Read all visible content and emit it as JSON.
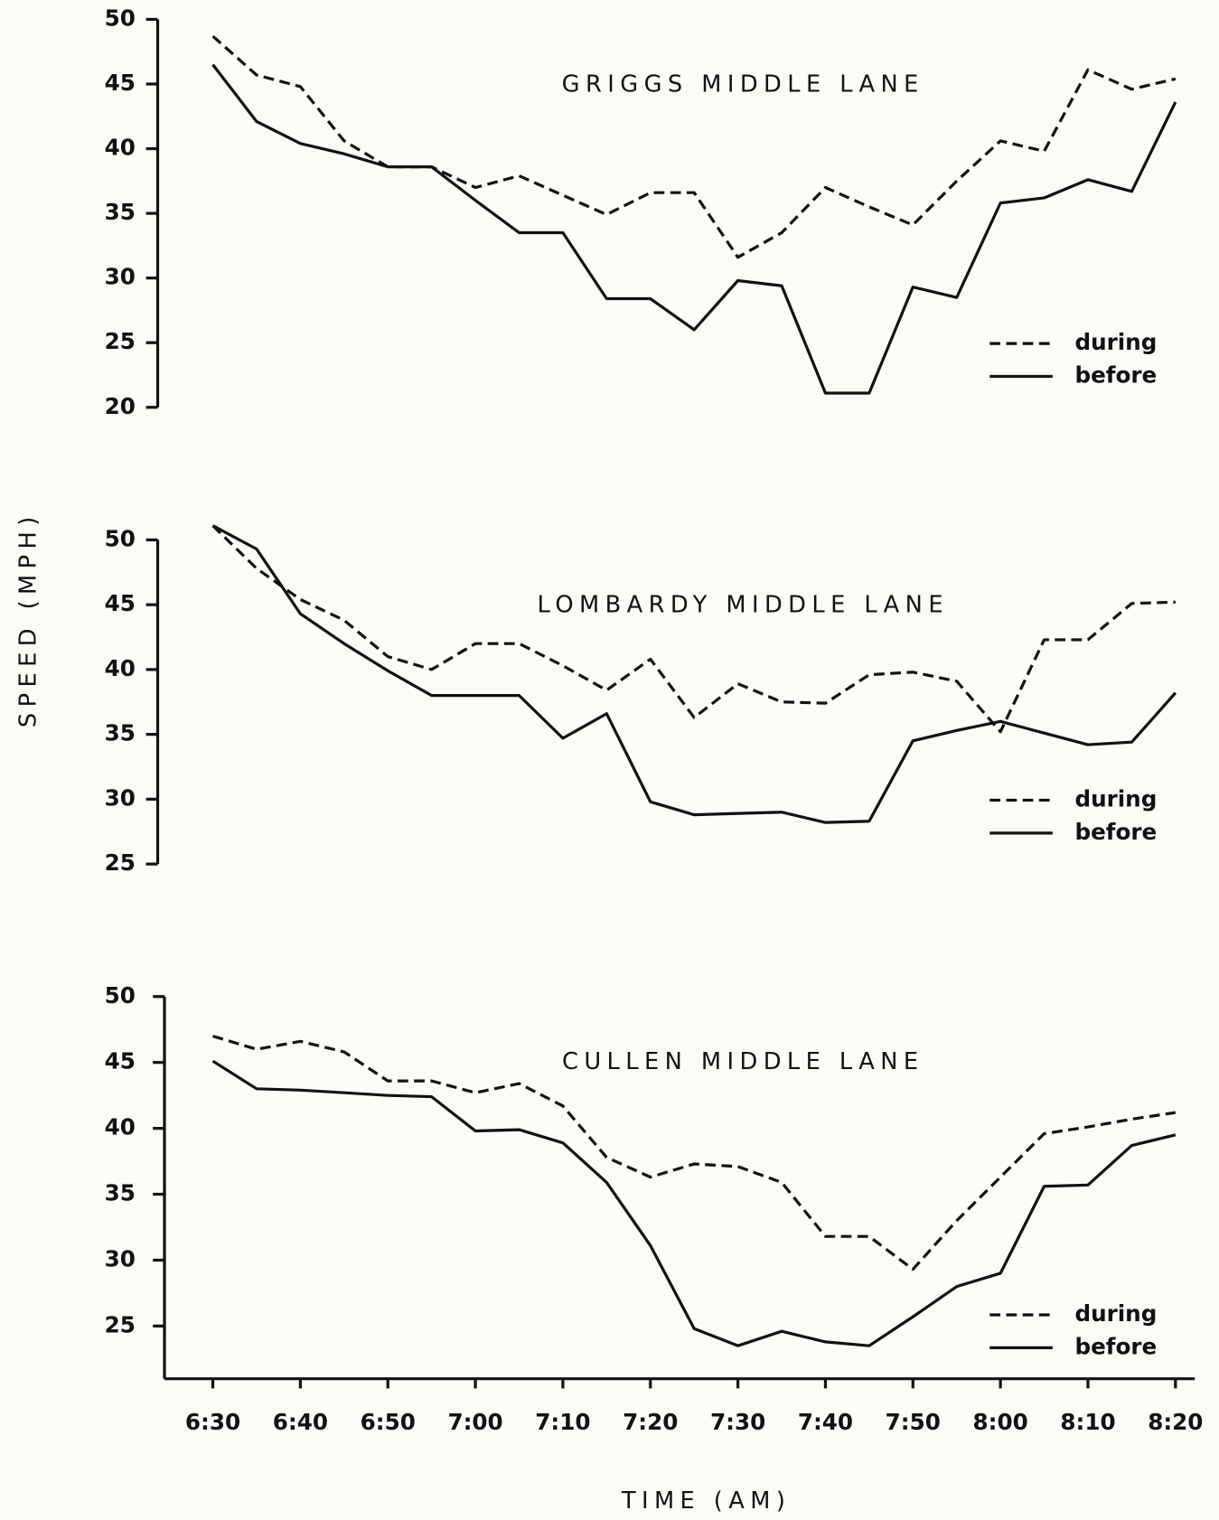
{
  "chart_data": [
    {
      "type": "line",
      "title": "GRIGGS MIDDLE LANE",
      "legend": "lower right",
      "ylim": [
        20,
        50
      ],
      "yticks": [
        20,
        25,
        30,
        35,
        40,
        45,
        50
      ],
      "series": [
        {
          "name": "during",
          "color": "#111111",
          "linestyle": "dashed",
          "values": [
            48.7,
            45.7,
            44.8,
            40.6,
            38.6,
            38.6,
            37.0,
            37.9,
            36.4,
            34.9,
            36.6,
            36.6,
            31.6,
            33.5,
            37.0,
            35.5,
            34.1,
            37.5,
            40.6,
            39.8,
            46.1,
            44.6,
            45.4
          ]
        },
        {
          "name": "before",
          "color": "#111111",
          "linestyle": "solid",
          "values": [
            46.5,
            42.1,
            40.4,
            39.6,
            38.6,
            38.6,
            36.0,
            33.5,
            33.5,
            28.4,
            28.4,
            26.0,
            29.8,
            29.4,
            21.1,
            21.1,
            29.3,
            28.5,
            35.8,
            36.2,
            37.6,
            36.7,
            43.6
          ]
        }
      ]
    },
    {
      "type": "line",
      "title": "LOMBARDY MIDDLE LANE",
      "legend": "lower right",
      "ylabel": "SPEED (MPH)",
      "ylim": [
        25,
        50
      ],
      "yticks": [
        25,
        30,
        35,
        40,
        45,
        50
      ],
      "series": [
        {
          "name": "during",
          "color": "#111111",
          "linestyle": "dashed",
          "values": [
            51.1,
            47.8,
            45.4,
            43.8,
            41.0,
            40.0,
            42.0,
            42.0,
            40.3,
            38.4,
            40.8,
            36.3,
            38.9,
            37.5,
            37.4,
            39.6,
            39.8,
            39.1,
            35.2,
            42.3,
            42.3,
            45.1,
            45.2
          ]
        },
        {
          "name": "before",
          "color": "#111111",
          "linestyle": "solid",
          "values": [
            51.1,
            49.3,
            44.3,
            42.0,
            39.9,
            38.0,
            38.0,
            38.0,
            34.7,
            36.6,
            29.8,
            28.8,
            28.9,
            29.0,
            28.2,
            28.3,
            34.5,
            35.3,
            36.0,
            35.1,
            34.2,
            34.4,
            38.2
          ]
        }
      ]
    },
    {
      "type": "line",
      "title": "CULLEN MIDDLE LANE",
      "legend": "lower right",
      "xlabel": "TIME (AM)",
      "categories": [
        "6:30",
        null,
        "6:40",
        null,
        "6:50",
        null,
        "7:00",
        null,
        "7:10",
        null,
        "7:20",
        null,
        "7:30",
        null,
        "7:40",
        null,
        "7:50",
        null,
        "8:00",
        null,
        "8:10",
        null,
        "8:20"
      ],
      "ylim": [
        21,
        50
      ],
      "yticks": [
        25,
        30,
        35,
        40,
        45,
        50
      ],
      "series": [
        {
          "name": "during",
          "color": "#111111",
          "linestyle": "dashed",
          "values": [
            47.0,
            46.0,
            46.6,
            45.8,
            43.6,
            43.6,
            42.7,
            43.4,
            41.7,
            37.8,
            36.3,
            37.3,
            37.1,
            35.9,
            31.8,
            31.8,
            29.3,
            33.0,
            36.3,
            39.6,
            40.1,
            40.7,
            41.2
          ]
        },
        {
          "name": "before",
          "color": "#111111",
          "linestyle": "solid",
          "values": [
            45.1,
            43.0,
            42.9,
            42.7,
            42.5,
            42.4,
            39.8,
            39.9,
            38.9,
            35.9,
            31.1,
            24.8,
            23.5,
            24.6,
            23.8,
            23.5,
            25.7,
            28.0,
            29.0,
            35.6,
            35.7,
            38.7,
            39.5
          ]
        }
      ]
    }
  ]
}
